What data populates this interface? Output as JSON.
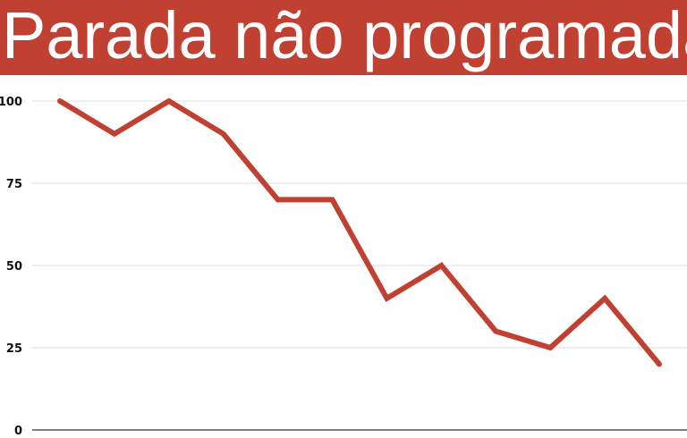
{
  "title": "Parada não programada",
  "colors": {
    "banner": "#c04032",
    "title_text": "#ffffff",
    "line": "#c04032",
    "grid": "#dddddd",
    "axis": "#333333"
  },
  "chart_data": {
    "type": "line",
    "title": "Parada não programada",
    "xlabel": "",
    "ylabel": "",
    "x": [
      1,
      2,
      3,
      4,
      5,
      6,
      7,
      8,
      9,
      10,
      11,
      12
    ],
    "series": [
      {
        "values": [
          100,
          90,
          100,
          90,
          70,
          70,
          40,
          50,
          30,
          25,
          40,
          20
        ]
      }
    ],
    "ylim": [
      0,
      100
    ],
    "yticks": [
      "0",
      "25",
      "50",
      "75",
      "100"
    ],
    "grid": true,
    "legend": "none"
  }
}
